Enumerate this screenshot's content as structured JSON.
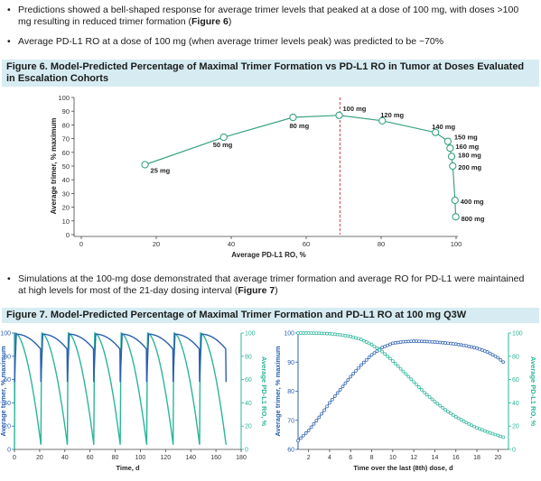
{
  "bullets": [
    {
      "pre": "Predictions showed a bell-shaped response for average trimer levels that peaked at a dose of 100 mg, with doses >100 mg resulting in reduced trimer formation (",
      "bold": "Figure 6",
      "post": ")"
    },
    {
      "pre": "Average PD-L1 RO at a dose of 100 mg (when average trimer levels peak) was predicted to be ~70%",
      "bold": "",
      "post": ""
    },
    {
      "pre": "Simulations at the 100-mg dose demonstrated that average trimer formation and average RO for PD-L1 were maintained at high levels for most of the 21-day dosing interval (",
      "bold": "Figure 7",
      "post": ")"
    }
  ],
  "fig6_title": "Figure 6. Model-Predicted Percentage of Maximal Trimer Formation vs PD-L1 RO in Tumor at Doses Evaluated in Escalation Cohorts",
  "fig7_title": "Figure 7. Model-Predicted Percentage of Maximal Trimer Formation and PD-L1 RO at 100 mg Q3W",
  "colors": {
    "blue": "#2a5fae",
    "teal": "#2bb59a",
    "green_line": "#3aa37f",
    "red_dash": "#d9363e",
    "title_bg": "#d6ecf2"
  },
  "chart_data": [
    {
      "type": "line",
      "xlabel": "Average PD-L1 RO, %",
      "ylabel": "Average trimer, % maximum",
      "xlim": [
        0,
        100
      ],
      "ylim": [
        0,
        100
      ],
      "xticks": [
        0,
        20,
        40,
        60,
        80,
        100
      ],
      "yticks": [
        0,
        10,
        20,
        30,
        40,
        50,
        60,
        70,
        80,
        90,
        100
      ],
      "reference_line_x": 69,
      "points": [
        {
          "x": 17,
          "y": 51,
          "label": "25 mg"
        },
        {
          "x": 38,
          "y": 71,
          "label": "50 mg"
        },
        {
          "x": 56.5,
          "y": 85.5,
          "label": "80 mg"
        },
        {
          "x": 68.8,
          "y": 87,
          "label": "100 mg"
        },
        {
          "x": 80.3,
          "y": 83,
          "label": "120 mg"
        },
        {
          "x": 94.5,
          "y": 74.5,
          "label": "140 mg"
        },
        {
          "x": 97.8,
          "y": 68,
          "label": "150 mg"
        },
        {
          "x": 98.4,
          "y": 63,
          "label": "160 mg"
        },
        {
          "x": 98.8,
          "y": 57,
          "label": "180 mg"
        },
        {
          "x": 99.1,
          "y": 50,
          "label": "200 mg"
        },
        {
          "x": 99.7,
          "y": 25,
          "label": "400 mg"
        },
        {
          "x": 99.9,
          "y": 13,
          "label": "800 mg"
        }
      ]
    },
    {
      "type": "line",
      "xlabel": "Time, d",
      "ylabel": "Average trimer, % maximum",
      "ylabel_right": "Average PD-L1 RO, %",
      "xlim": [
        0,
        180
      ],
      "ylim": [
        0,
        100
      ],
      "xticks": [
        0,
        20,
        40,
        60,
        80,
        100,
        120,
        140,
        160,
        180
      ],
      "yticks": [
        0,
        20,
        40,
        60,
        80,
        100
      ],
      "dosing_interval_days": 21,
      "doses": 8,
      "series": [
        {
          "color": "#2a5fae",
          "axis": "left",
          "trough": 58,
          "peak": 99
        },
        {
          "color": "#2bb59a",
          "axis": "right",
          "trough": 4,
          "peak": 100
        }
      ]
    },
    {
      "type": "line",
      "xlabel": "Time over the last (8th) dose, d",
      "ylabel": "Average trimer, % maximum",
      "ylabel_right": "Average PD-L1 RO, %",
      "xlim": [
        1,
        21
      ],
      "ylim": [
        60,
        100
      ],
      "ylim_right": [
        0,
        100
      ],
      "xticks": [
        2,
        4,
        6,
        8,
        10,
        12,
        14,
        16,
        18,
        20
      ],
      "yticks": [
        60,
        70,
        80,
        90,
        100
      ],
      "yticks_right": [
        0,
        20,
        40,
        60,
        80,
        100
      ],
      "series": [
        {
          "color": "#2a5fae",
          "axis": "left",
          "x": [
            1,
            2,
            3,
            4,
            5,
            6,
            7,
            8,
            9,
            10,
            11,
            12,
            13,
            14,
            15,
            16,
            17,
            18,
            19,
            20,
            20.5
          ],
          "y": [
            63,
            66.5,
            71,
            76,
            80.5,
            85,
            89,
            92.5,
            95,
            96.5,
            97,
            97.2,
            97.1,
            96.9,
            96.6,
            96.2,
            95.6,
            94.8,
            93.5,
            91.5,
            90
          ]
        },
        {
          "color": "#2bb59a",
          "axis": "right",
          "x": [
            1,
            2,
            3,
            4,
            5,
            6,
            7,
            8,
            9,
            10,
            11,
            12,
            13,
            14,
            15,
            16,
            17,
            18,
            19,
            20,
            20.5
          ],
          "y": [
            100,
            100,
            99.8,
            99.4,
            98.5,
            97,
            94.5,
            90,
            84,
            76,
            67,
            58,
            49,
            41,
            34,
            28,
            23,
            18.5,
            15,
            12,
            10.5
          ]
        }
      ]
    }
  ]
}
